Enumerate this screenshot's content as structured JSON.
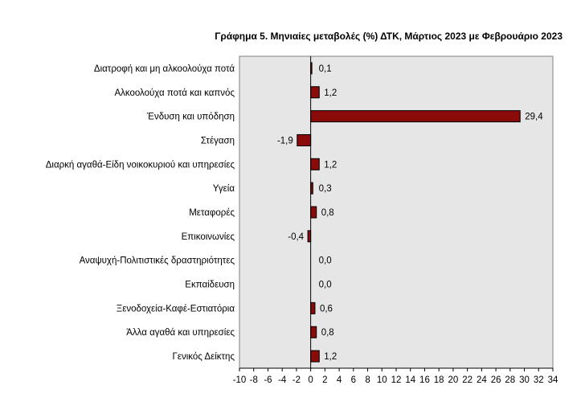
{
  "chart_data": {
    "type": "bar",
    "orientation": "horizontal",
    "title": "Γράφημα 5. Μηνιαίες μεταβολές (%) ΔΤΚ, Μάρτιος 2023 με Φεβρουάριο 2023",
    "categories": [
      "Διατροφή και μη αλκοολούχα ποτά",
      "Αλκοολούχα ποτά και καπνός",
      "Ένδυση και υπόδηση",
      "Στέγαση",
      "Διαρκή αγαθά-Είδη νοικοκυριού και υπηρεσίες",
      "Υγεία",
      "Μεταφορές",
      "Επικοινωνίες",
      "Αναψυχή-Πολιτιστικές δραστηριότητες",
      "Εκπαίδευση",
      "Ξενοδοχεία-Καφέ-Εστιατόρια",
      "Άλλα αγαθά και υπηρεσίες",
      "Γενικός Δείκτης"
    ],
    "values": [
      0.1,
      1.2,
      29.4,
      -1.9,
      1.2,
      0.3,
      0.8,
      -0.4,
      0.0,
      0.0,
      0.6,
      0.8,
      1.2
    ],
    "value_labels": [
      "0,1",
      "1,2",
      "29,4",
      "-1,9",
      "1,2",
      "0,3",
      "0,8",
      "-0,4",
      "0,0",
      "0,0",
      "0,6",
      "0,8",
      "1,2"
    ],
    "xlim": [
      -10,
      34
    ],
    "x_ticks": [
      "-10",
      "-8",
      "-6",
      "-4",
      "-2",
      "0",
      "2",
      "4",
      "6",
      "8",
      "10",
      "12",
      "14",
      "16",
      "18",
      "20",
      "22",
      "24",
      "26",
      "28",
      "30",
      "32",
      "34"
    ],
    "grid": false,
    "legend": "none",
    "colors": {
      "bar_fill": "#8b0a0a",
      "bar_stroke": "#000000",
      "plot_background": "#e6e6e6",
      "plot_border": "#808080"
    }
  }
}
